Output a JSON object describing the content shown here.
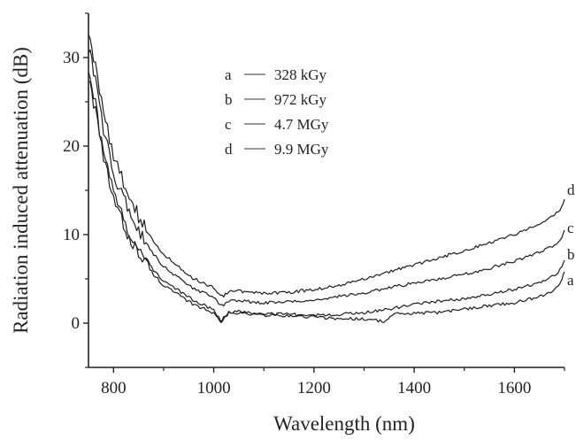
{
  "chart_data": {
    "type": "line",
    "title": "",
    "xlabel": "Wavelength (nm)",
    "ylabel": "Radiation induced attenuation (dB)",
    "xlim": [
      750,
      1700
    ],
    "ylim": [
      -5,
      35
    ],
    "x_ticks": [
      800,
      1000,
      1200,
      1400,
      1600
    ],
    "y_ticks": [
      0,
      10,
      20,
      30
    ],
    "grid": false,
    "legend_position": "top-center",
    "colors": {
      "axis": "#222222",
      "line": "#1e1e1e",
      "legend_line": "#777777"
    },
    "series": [
      {
        "name": "a",
        "label": "a",
        "dose": "328 kGy",
        "x": [
          750,
          760,
          780,
          800,
          820,
          850,
          880,
          900,
          950,
          1000,
          1010,
          1015,
          1020,
          1030,
          1050,
          1100,
          1150,
          1200,
          1250,
          1300,
          1340,
          1360,
          1400,
          1450,
          1500,
          1550,
          1600,
          1650,
          1680,
          1695,
          1700
        ],
        "y": [
          28,
          25,
          18.5,
          14,
          11,
          7.8,
          5.5,
          4.3,
          2.4,
          1.1,
          0.5,
          0.2,
          0.6,
          1.1,
          1.1,
          0.9,
          0.8,
          0.7,
          0.5,
          0.5,
          0.2,
          1.0,
          1.1,
          1.2,
          1.6,
          2.0,
          2.3,
          3.0,
          3.7,
          5.0,
          5.8
        ]
      },
      {
        "name": "b",
        "label": "b",
        "dose": "972 kGy",
        "x": [
          750,
          760,
          780,
          800,
          820,
          850,
          880,
          900,
          950,
          1000,
          1010,
          1015,
          1020,
          1030,
          1050,
          1100,
          1150,
          1200,
          1250,
          1300,
          1350,
          1400,
          1450,
          1500,
          1550,
          1600,
          1650,
          1680,
          1695,
          1700
        ],
        "y": [
          29,
          26,
          19,
          14.8,
          11.6,
          8.2,
          6.0,
          4.8,
          2.9,
          1.5,
          0.7,
          0.3,
          0.8,
          1.2,
          1.3,
          1.1,
          1.0,
          0.9,
          1.0,
          1.2,
          1.6,
          2.1,
          2.5,
          2.8,
          3.3,
          3.8,
          4.6,
          5.4,
          6.3,
          7.1
        ]
      },
      {
        "name": "c",
        "label": "c",
        "dose": "4.7 MGy",
        "x": [
          750,
          760,
          780,
          800,
          820,
          850,
          880,
          900,
          950,
          1000,
          1010,
          1020,
          1030,
          1050,
          1100,
          1150,
          1200,
          1250,
          1300,
          1350,
          1400,
          1450,
          1500,
          1550,
          1600,
          1650,
          1680,
          1695,
          1700
        ],
        "y": [
          31,
          28.5,
          22,
          17,
          14,
          10.4,
          7.8,
          6.4,
          4.2,
          2.9,
          2.3,
          2.1,
          2.5,
          2.5,
          2.3,
          2.4,
          2.6,
          3.0,
          3.4,
          4.0,
          4.5,
          5.0,
          5.5,
          6.2,
          7.0,
          8.0,
          8.8,
          9.8,
          10.5
        ]
      },
      {
        "name": "d",
        "label": "d",
        "dose": "9.9 MGy",
        "x": [
          750,
          760,
          780,
          800,
          820,
          850,
          880,
          900,
          950,
          1000,
          1010,
          1020,
          1030,
          1050,
          1100,
          1150,
          1200,
          1250,
          1300,
          1350,
          1400,
          1450,
          1500,
          1550,
          1600,
          1650,
          1680,
          1695,
          1700
        ],
        "y": [
          33,
          30,
          24,
          19,
          16,
          12,
          9.3,
          7.8,
          5.3,
          4.0,
          3.4,
          3.1,
          3.6,
          3.6,
          3.4,
          3.5,
          3.8,
          4.3,
          5.0,
          5.8,
          6.6,
          7.4,
          8.2,
          9.1,
          10.0,
          11.3,
          12.2,
          13.2,
          14.0
        ]
      }
    ]
  }
}
